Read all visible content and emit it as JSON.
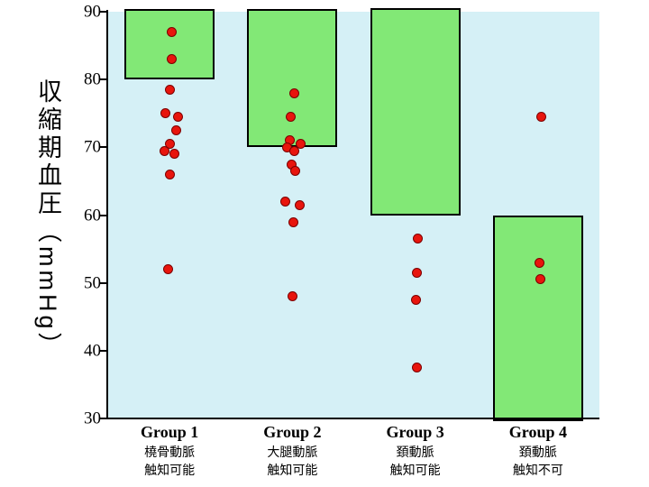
{
  "chart_data": {
    "type": "scatter",
    "title": "",
    "ylabel": "収縮期血圧（mmHg）",
    "xlabel": "",
    "ylim": [
      30,
      90
    ],
    "yticks": [
      90,
      80,
      70,
      60,
      50,
      40,
      30
    ],
    "grid": false,
    "legend": "none",
    "plot_background": "#d5f0f6",
    "bar_color": "#82e876",
    "bar_border_color": "#000000",
    "point_color": "#e8150d",
    "point_border_color": "#7c0000",
    "groups": [
      {
        "label": "Group 1",
        "sublabel_1": "橈骨動脈",
        "sublabel_2": "触知可能",
        "bar_range": [
          80,
          90.4
        ],
        "points": [
          {
            "y": 87,
            "dx": 2
          },
          {
            "y": 83,
            "dx": 2
          },
          {
            "y": 78.5,
            "dx": 0
          },
          {
            "y": 75,
            "dx": -5
          },
          {
            "y": 74.5,
            "dx": 9
          },
          {
            "y": 72.5,
            "dx": 7
          },
          {
            "y": 70.5,
            "dx": 0
          },
          {
            "y": 69.5,
            "dx": -6
          },
          {
            "y": 69,
            "dx": 5
          },
          {
            "y": 66,
            "dx": 0
          },
          {
            "y": 52,
            "dx": -2
          }
        ]
      },
      {
        "label": "Group 2",
        "sublabel_1": "大腿動脈",
        "sublabel_2": "触知可能",
        "bar_range": [
          70,
          90.4
        ],
        "points": [
          {
            "y": 78,
            "dx": 2
          },
          {
            "y": 74.5,
            "dx": -2
          },
          {
            "y": 71,
            "dx": -3
          },
          {
            "y": 70.5,
            "dx": 9
          },
          {
            "y": 70,
            "dx": -6
          },
          {
            "y": 69.5,
            "dx": 2
          },
          {
            "y": 67.5,
            "dx": -1
          },
          {
            "y": 66.5,
            "dx": 3
          },
          {
            "y": 62,
            "dx": -8
          },
          {
            "y": 61.5,
            "dx": 8
          },
          {
            "y": 59,
            "dx": 1
          },
          {
            "y": 48,
            "dx": 0
          }
        ]
      },
      {
        "label": "Group 3",
        "sublabel_1": "頚動脈",
        "sublabel_2": "触知可能",
        "bar_range": [
          60,
          90.6
        ],
        "points": [
          {
            "y": 56.5,
            "dx": 3
          },
          {
            "y": 51.5,
            "dx": 2
          },
          {
            "y": 47.5,
            "dx": 1
          },
          {
            "y": 37.5,
            "dx": 2
          }
        ]
      },
      {
        "label": "Group 4",
        "sublabel_1": "頚動脈",
        "sublabel_2": "触知不可",
        "bar_range": [
          29.6,
          60
        ],
        "points": [
          {
            "y": 74.5,
            "dx": 4
          },
          {
            "y": 53,
            "dx": 2
          },
          {
            "y": 50.5,
            "dx": 3
          }
        ]
      }
    ]
  }
}
